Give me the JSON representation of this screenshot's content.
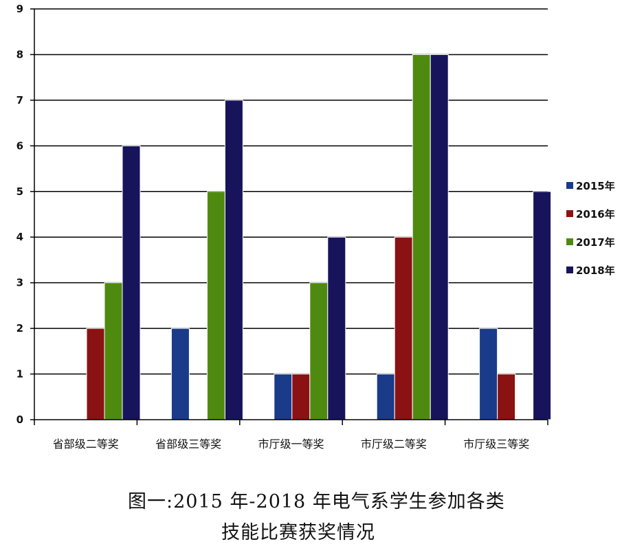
{
  "chart_data": {
    "type": "bar",
    "categories": [
      "省部级二等奖",
      "省部级三等奖",
      "市厅级一等奖",
      "市厅级二等奖",
      "市厅级三等奖"
    ],
    "series": [
      {
        "name": "2015年",
        "color": "#1a3a8a",
        "values": [
          0,
          2,
          1,
          1,
          2
        ]
      },
      {
        "name": "2016年",
        "color": "#8b1212",
        "values": [
          2,
          0,
          1,
          4,
          1
        ]
      },
      {
        "name": "2017年",
        "color": "#4f8a10",
        "values": [
          3,
          5,
          3,
          8,
          0
        ]
      },
      {
        "name": "2018年",
        "color": "#17145c",
        "values": [
          6,
          7,
          4,
          8,
          5
        ]
      }
    ],
    "yticks": [
      "0",
      "1",
      "2",
      "3",
      "4",
      "5",
      "6",
      "7",
      "8",
      "9"
    ],
    "ylim": [
      0,
      9
    ],
    "grid": true,
    "legend_position": "right"
  },
  "caption": {
    "line1": "图一:2015 年-2018 年电气系学生参加各类",
    "line2": "技能比赛获奖情况"
  }
}
